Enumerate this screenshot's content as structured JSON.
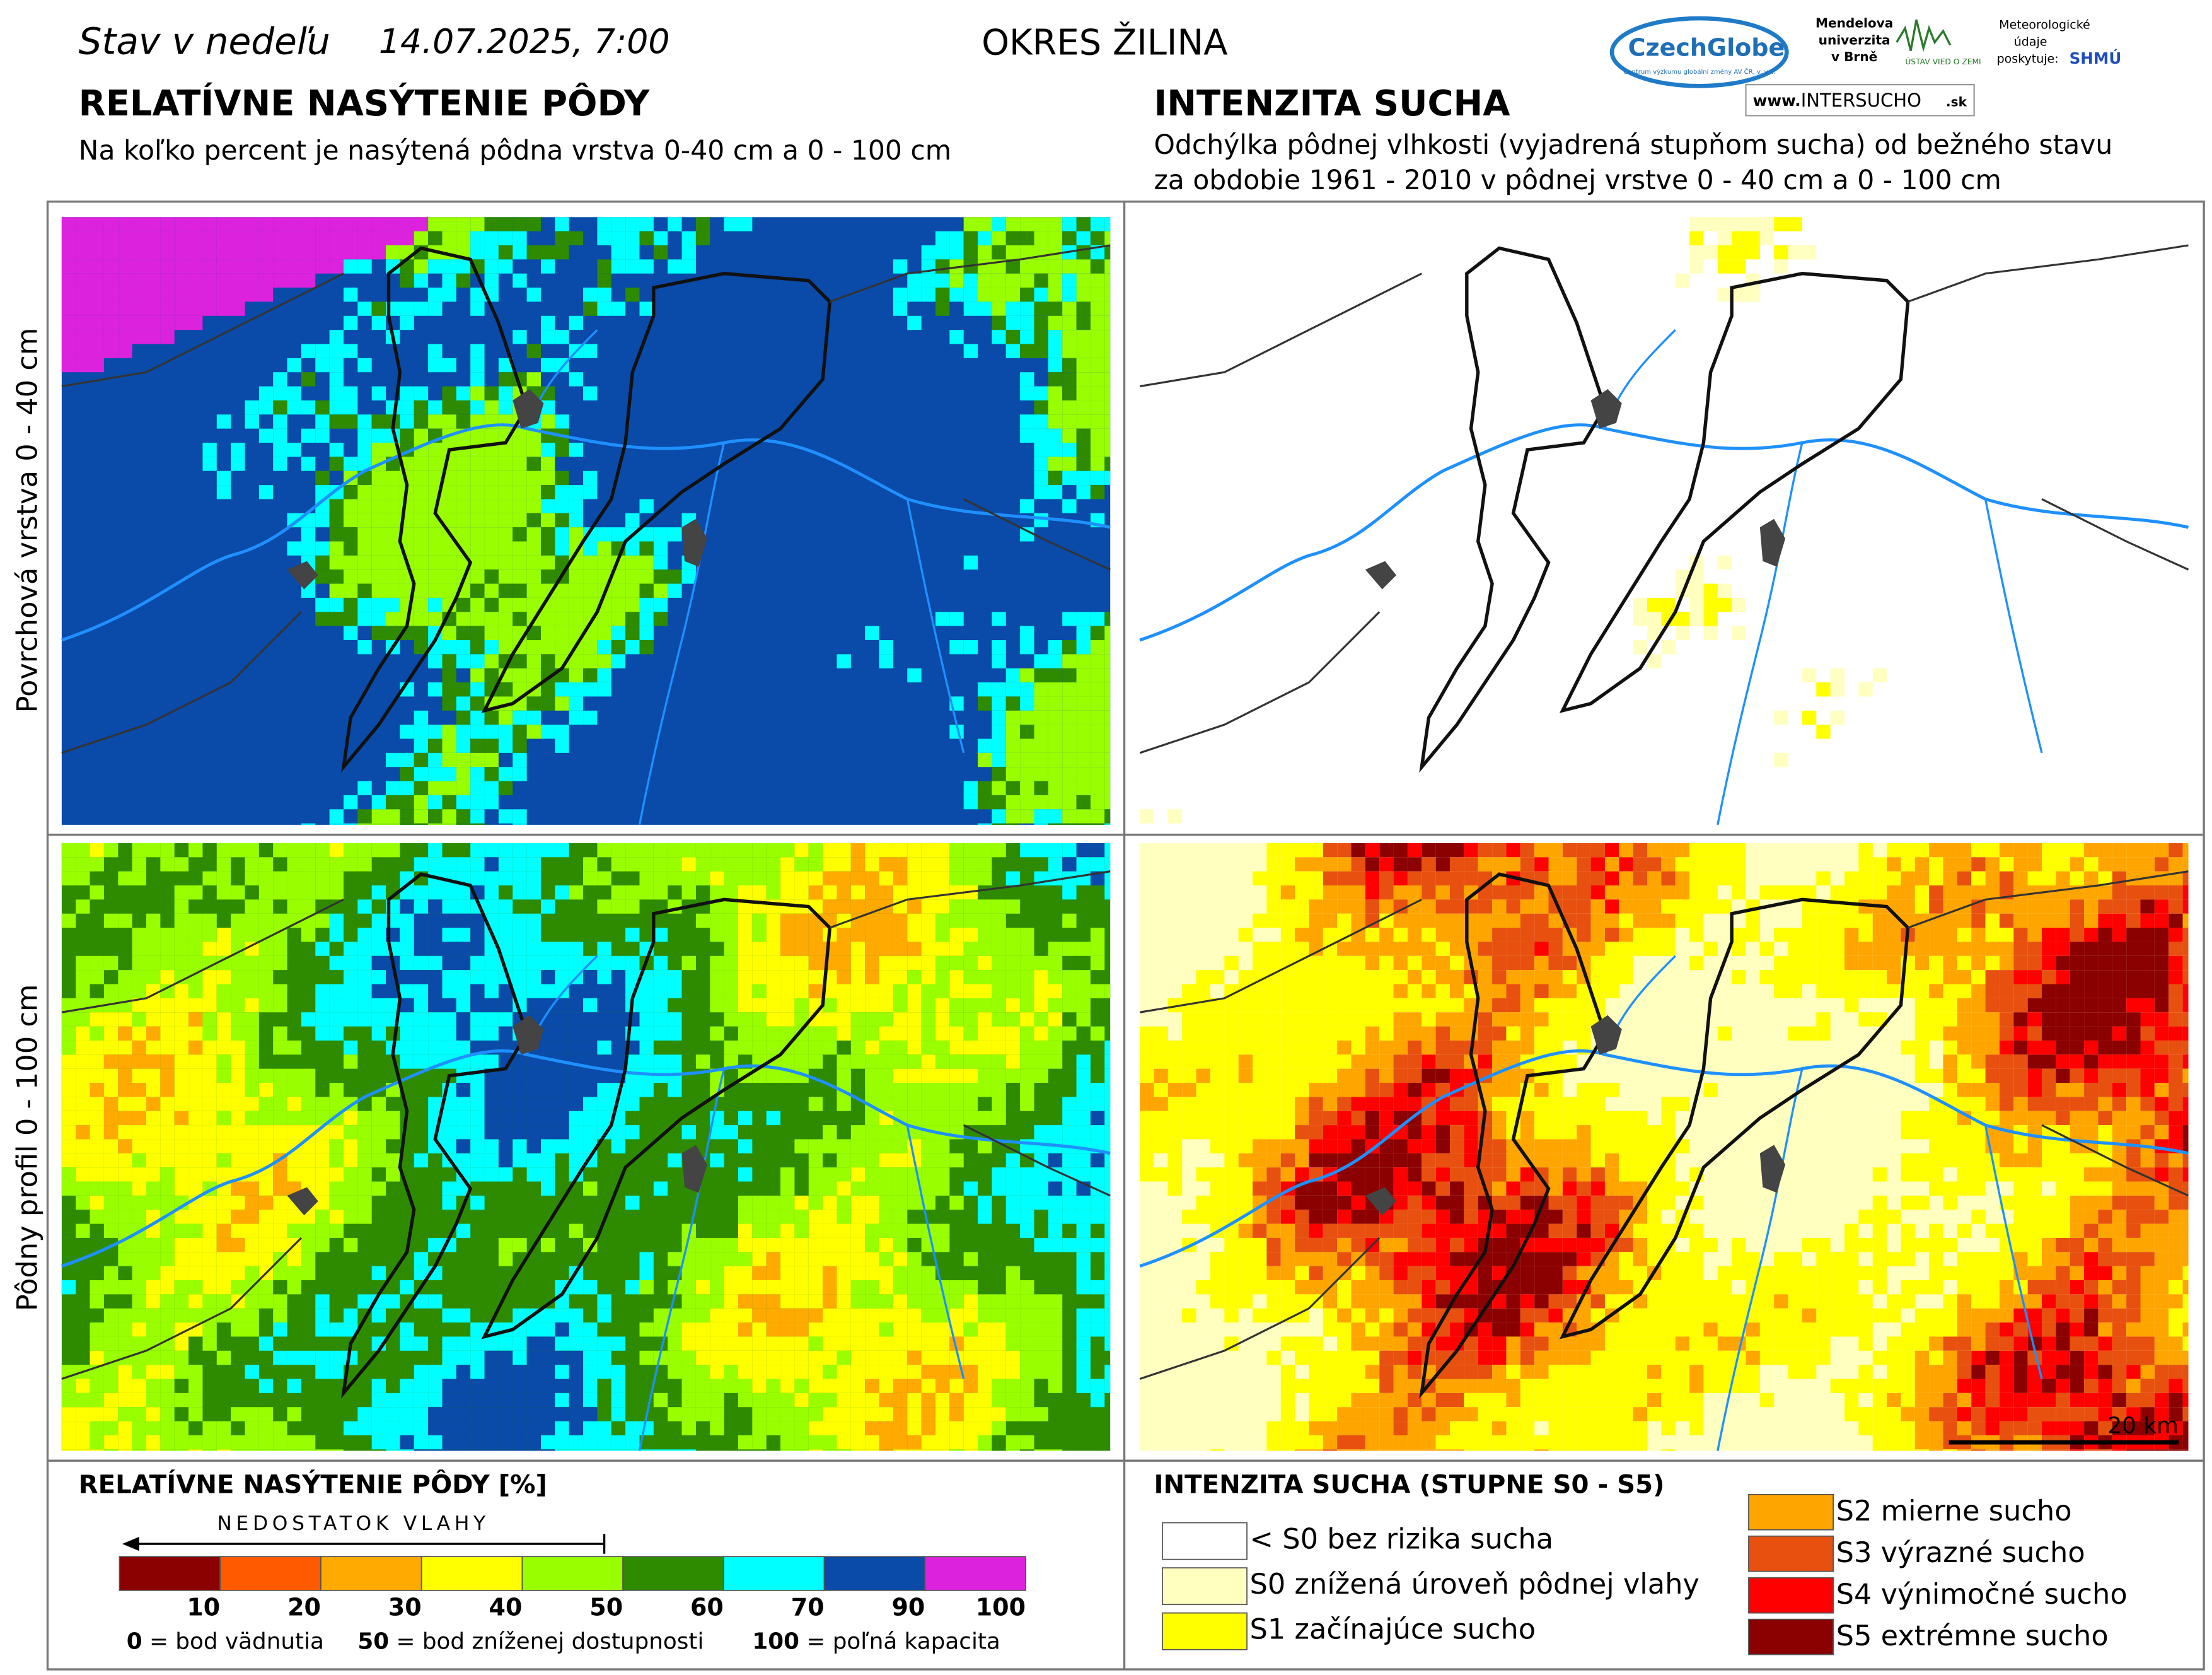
{
  "header": {
    "date_prefix": "Stav v nedeľu",
    "date": "14.07.2025, 7:00",
    "title": "OKRES ŽILINA",
    "logos": {
      "czechglobe": "CzechGlobe",
      "czechglobe_note": "Centrum výzkumu globální změny AV ČR, v. v. i.",
      "mendel": [
        "Mendelova",
        "univerzita",
        "v Brně"
      ],
      "ustav": "ÚSTAV VIED O ZEMI",
      "meteo": [
        "Meteorologické",
        "údaje",
        "poskytuje:"
      ],
      "shmu": "SHMÚ",
      "web": [
        "www.",
        "INTERSUCHO",
        ".sk"
      ]
    }
  },
  "left": {
    "title": "RELATÍVNE NASÝTENIE PÔDY",
    "subtitle": "Na koľko percent je nasýtená pôdna vrstva 0-40 cm a 0 - 100 cm"
  },
  "right": {
    "title": "INTENZITA SUCHA",
    "subtitle": [
      "Odchýlka pôdnej vlhkosti (vyjadrená stupňom sucha) od bežného stavu",
      "za obdobie 1961 - 2010 v pôdnej vrstve 0 - 40 cm a 0 - 100 cm"
    ]
  },
  "rows": [
    "Povrchová vrstva 0 - 40 cm",
    "Pôdny profil 0 - 100 cm"
  ],
  "scale_bar": "20 km",
  "legend_saturation": {
    "title": "RELATÍVNE NASÝTENIE PÔDY [%]",
    "arrow": "NEDOSTATOK VLAHY",
    "colors": [
      "#8b0000",
      "#ff5a00",
      "#ffaa00",
      "#ffff00",
      "#99ff00",
      "#2e8b00",
      "#00ffff",
      "#0a4aa8",
      "#dd22dd"
    ],
    "ticks": [
      10,
      20,
      30,
      40,
      50,
      60,
      70,
      90,
      100
    ],
    "notes": [
      {
        "value": 0,
        "text": " = bod vädnutia"
      },
      {
        "value": 50,
        "text": " = bod zníženej dostupnosti"
      },
      {
        "value": 100,
        "text": " = poľná kapacita"
      }
    ]
  },
  "legend_drought": {
    "title": "INTENZITA SUCHA (STUPNE S0 - S5)",
    "items": [
      {
        "label": "< S0 bez rizika sucha",
        "color": "#ffffff"
      },
      {
        "label": "S0 znížená úroveň pôdnej vlahy",
        "color": "#ffffc0"
      },
      {
        "label": "S1 začínajúce sucho",
        "color": "#ffff00"
      },
      {
        "label": "S2 mierne sucho",
        "color": "#ffa500"
      },
      {
        "label": "S3 výrazné sucho",
        "color": "#e85010"
      },
      {
        "label": "S4 výnimočné sucho",
        "color": "#ff0000"
      },
      {
        "label": "S5 extrémne sucho",
        "color": "#8b0000"
      }
    ]
  }
}
